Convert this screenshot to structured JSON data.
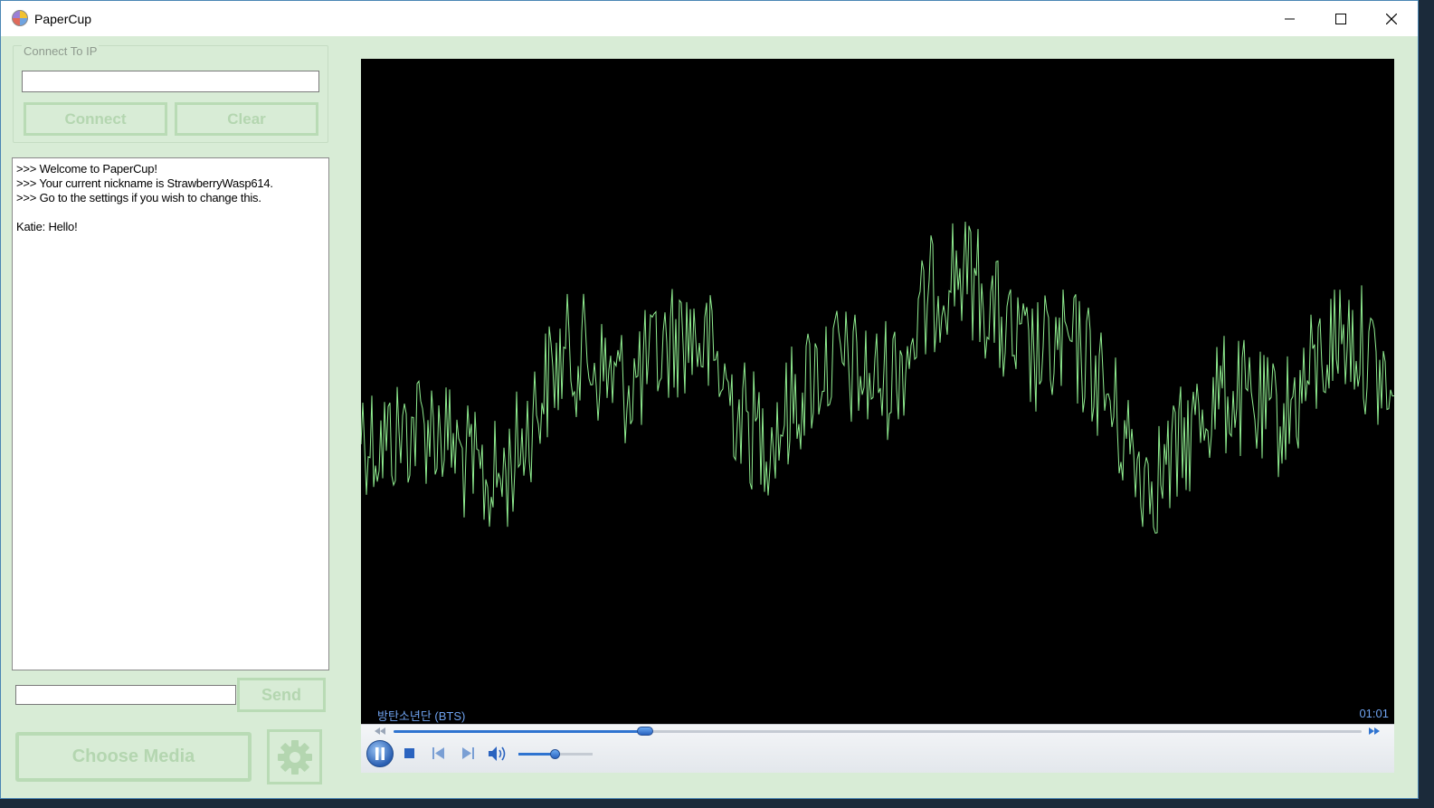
{
  "window": {
    "title": "PaperCup",
    "icons": {
      "app": "papercup-app-icon",
      "minimize": "minimize-icon",
      "maximize": "maximize-icon",
      "close": "close-icon"
    }
  },
  "connect": {
    "group_label": "Connect To IP",
    "ip_value": "",
    "connect_label": "Connect",
    "clear_label": "Clear"
  },
  "chat": {
    "lines": [
      ">>> Welcome to PaperCup!",
      ">>> Your current nickname is StrawberryWasp614.",
      ">>> Go to the settings if you wish to change this.",
      "",
      "Katie: Hello!"
    ],
    "message_value": "",
    "send_label": "Send"
  },
  "actions": {
    "choose_media_label": "Choose Media",
    "settings_icon": "gear-icon"
  },
  "player": {
    "track_title": "방탄소년단 (BTS)",
    "time": "01:01",
    "progress": 0.26,
    "volume": 0.5,
    "state": "playing",
    "visualizer_color": "#90ee90",
    "accent_color": "#2f74d0",
    "icons": [
      "pause-icon",
      "stop-icon",
      "previous-icon",
      "next-icon",
      "volume-icon",
      "rewind-icon",
      "fast-forward-icon"
    ]
  },
  "colors": {
    "window_bg": "#d8ecd6",
    "button_border": "#b9dbb5",
    "button_text": "#b4d6b0"
  }
}
